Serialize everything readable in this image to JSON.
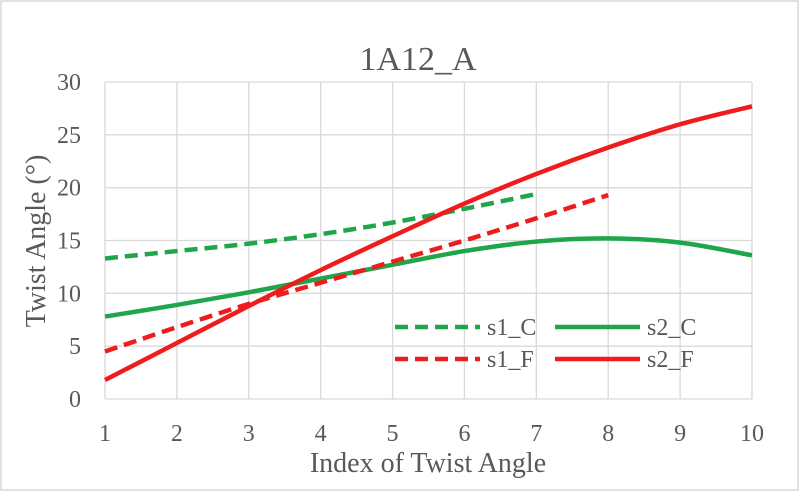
{
  "chart_data": {
    "type": "line",
    "title": "1A12_A",
    "xlabel": "Index of Twist Angle",
    "ylabel": "Twist Angle (°)",
    "xlim": [
      1,
      10
    ],
    "ylim": [
      0,
      30
    ],
    "x_ticks": [
      "1",
      "2",
      "3",
      "4",
      "5",
      "6",
      "7",
      "8",
      "9",
      "10"
    ],
    "y_ticks": [
      "0",
      "5",
      "10",
      "15",
      "20",
      "25",
      "30"
    ],
    "grid": true,
    "legend_position": "bottom-right",
    "series": [
      {
        "name": "s1_C",
        "color": "#1FA64A",
        "dash": "dashed",
        "x": [
          1,
          2,
          3,
          4,
          5,
          6,
          7
        ],
        "y": [
          13.3,
          14.0,
          14.7,
          15.6,
          16.7,
          18.0,
          19.4
        ]
      },
      {
        "name": "s2_C",
        "color": "#1FA64A",
        "dash": "solid",
        "x": [
          1,
          2,
          3,
          4,
          5,
          6,
          7,
          8,
          9,
          10
        ],
        "y": [
          7.8,
          8.9,
          10.1,
          11.4,
          12.7,
          14.0,
          14.9,
          15.2,
          14.8,
          13.6
        ]
      },
      {
        "name": "s1_F",
        "color": "#EE1C1C",
        "dash": "dashed",
        "x": [
          1,
          2,
          3,
          4,
          5,
          6,
          7,
          8
        ],
        "y": [
          4.5,
          6.8,
          9.0,
          11.0,
          13.0,
          15.0,
          17.1,
          19.3
        ]
      },
      {
        "name": "s2_F",
        "color": "#EE1C1C",
        "dash": "solid",
        "x": [
          1,
          2,
          3,
          4,
          5,
          6,
          7,
          8,
          9,
          10
        ],
        "y": [
          1.8,
          5.3,
          8.8,
          12.2,
          15.4,
          18.5,
          21.3,
          23.8,
          26.0,
          27.7
        ]
      }
    ]
  }
}
